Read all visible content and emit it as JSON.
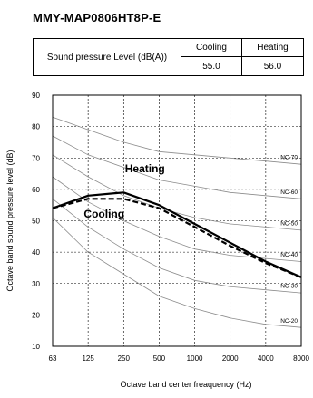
{
  "model": "MMY-MAP0806HT8P-E",
  "table": {
    "row_label": "Sound pressure Level (dB(A))",
    "columns": [
      "Cooling",
      "Heating"
    ],
    "values": [
      "55.0",
      "56.0"
    ]
  },
  "chart_data": {
    "type": "line",
    "title": "",
    "xlabel": "Octave band center freaquency (Hz)",
    "ylabel": "Octave band sound pressure level (dB)",
    "x": [
      "63",
      "125",
      "250",
      "500",
      "1000",
      "2000",
      "4000",
      "8000"
    ],
    "ylim": [
      10,
      90
    ],
    "yticks": [
      10,
      20,
      30,
      40,
      50,
      60,
      70,
      80,
      90
    ],
    "grid": true,
    "series": [
      {
        "name": "Heating",
        "style": "solid",
        "color": "#000000",
        "values": [
          54,
          58,
          59,
          55,
          49,
          43,
          37,
          32
        ]
      },
      {
        "name": "Cooling",
        "style": "dashed",
        "color": "#000000",
        "values": [
          54,
          57,
          57,
          54,
          48,
          42,
          36.5,
          32
        ]
      }
    ],
    "nc_curves": [
      {
        "name": "NC-70",
        "values": [
          83,
          79,
          75,
          72,
          71,
          70,
          69,
          68
        ]
      },
      {
        "name": "NC-60",
        "values": [
          77,
          71,
          67,
          63,
          61,
          59,
          58,
          57
        ]
      },
      {
        "name": "NC-50",
        "values": [
          71,
          64,
          58,
          54,
          51,
          49,
          48,
          47
        ]
      },
      {
        "name": "NC-40",
        "values": [
          64,
          56,
          50,
          45,
          41,
          39,
          38,
          37
        ]
      },
      {
        "name": "NC-30",
        "values": [
          57,
          48,
          41,
          35,
          31,
          29,
          28,
          27
        ]
      },
      {
        "name": "NC-20",
        "values": [
          51,
          40,
          33,
          26,
          22,
          19,
          17,
          16
        ]
      }
    ],
    "nc_labels": [
      "NC-70",
      "NC-60",
      "NC-50",
      "NC-40",
      "NC-30",
      "NC-20"
    ],
    "nc_label_values": [
      69,
      58,
      48,
      38,
      28,
      17
    ]
  }
}
